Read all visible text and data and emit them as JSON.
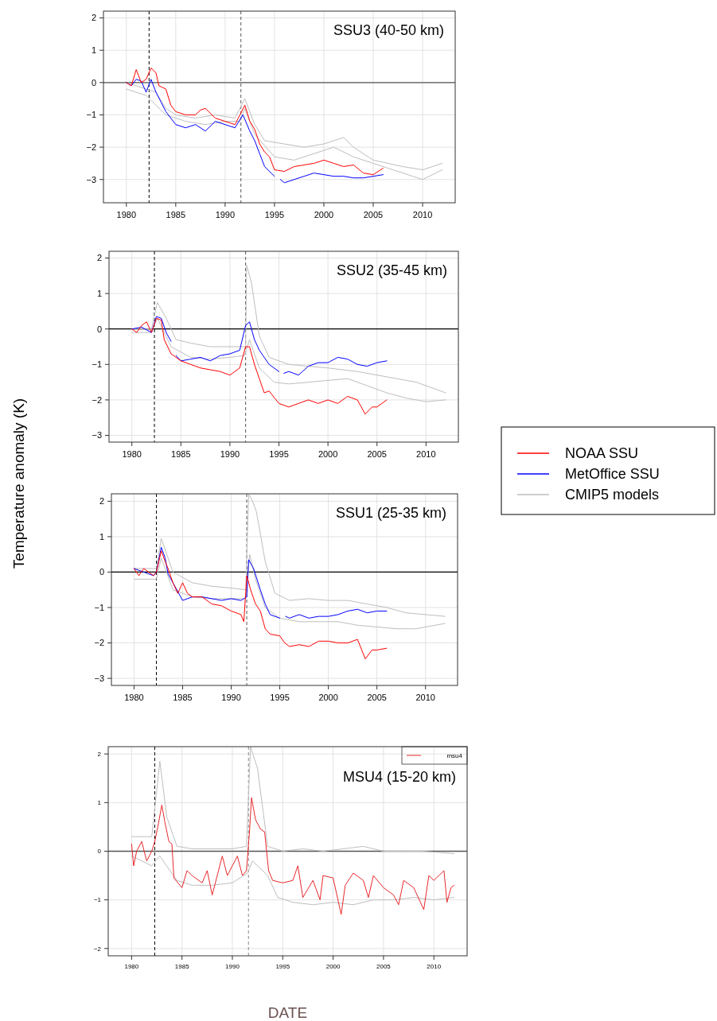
{
  "chart_data": [
    {
      "type": "line",
      "annotations": [
        "SSU3 (40-50 km)"
      ],
      "xlim": [
        1977.68,
        2013.3
      ],
      "ylim": [
        -3.72,
        2.21
      ],
      "xticks": [
        1980,
        1985,
        1990,
        1995,
        2000,
        2005,
        2010
      ],
      "yticks": [
        -3,
        -2,
        -1,
        0,
        1,
        2
      ],
      "grid": true,
      "ref_lines": [
        {
          "axis": "x",
          "value": 1982.3,
          "color": "#000000",
          "line_style": "dashed"
        },
        {
          "axis": "x",
          "value": 1991.6,
          "color": "#555555",
          "line_style": "dashed"
        },
        {
          "axis": "y",
          "value": 0,
          "color": "#555555",
          "line_style": "solid"
        }
      ],
      "series": [
        {
          "color": "#ff0000",
          "x": [
            1980,
            1980.5,
            1981,
            1981.5,
            1982,
            1982.5,
            1983,
            1983.3,
            1984,
            1984.5,
            1985,
            1986,
            1987,
            1987.5,
            1988,
            1989,
            1990,
            1991,
            1991.5,
            1992,
            1992.5,
            1993,
            1993.5,
            1994,
            1994.5,
            1995,
            1996,
            1997,
            1998,
            1999,
            2000,
            2001,
            2002,
            2003,
            2004,
            2005,
            2006
          ],
          "values": [
            0,
            -0.1,
            0.4,
            0,
            0.1,
            0.45,
            0.3,
            -0.1,
            -0.2,
            -0.7,
            -0.9,
            -1.0,
            -1.0,
            -0.85,
            -0.8,
            -1.1,
            -1.2,
            -1.3,
            -1.0,
            -0.7,
            -1.2,
            -1.45,
            -1.9,
            -2.15,
            -2.3,
            -2.7,
            -2.75,
            -2.6,
            -2.55,
            -2.5,
            -2.4,
            -2.5,
            -2.6,
            -2.55,
            -2.8,
            -2.85,
            -2.65
          ]
        },
        {
          "color": "#0000ff",
          "x": [
            1980,
            1980.5,
            1981,
            1981.5,
            1982,
            1982.5,
            1983,
            1983.5,
            1984,
            1985,
            1986,
            1987,
            1988,
            1989,
            1990,
            1991,
            1991.8,
            1992.5,
            1993,
            1993.5,
            1994,
            1995,
            1995.3,
            1995.6,
            1996,
            1997,
            1998,
            1999,
            2000,
            2001,
            2002,
            2003,
            2004,
            2005,
            2006
          ],
          "values": [
            0,
            -0.1,
            0.1,
            0.05,
            -0.3,
            0.1,
            -0.3,
            -0.6,
            -0.9,
            -1.3,
            -1.4,
            -1.3,
            -1.5,
            -1.2,
            -1.3,
            -1.4,
            -1.0,
            -1.5,
            -1.8,
            -2.2,
            -2.6,
            -2.9,
            null,
            -3.0,
            -3.1,
            -3.0,
            -2.9,
            -2.8,
            -2.85,
            -2.9,
            -2.9,
            -2.95,
            -2.95,
            -2.9,
            -2.85
          ]
        },
        {
          "color": "#bebebe",
          "x": [
            1980,
            1981,
            1982,
            1983,
            1984,
            1985,
            1987,
            1989,
            1991,
            1992,
            1993,
            1994,
            1996,
            1998,
            2000,
            2002,
            2003,
            2005,
            2008,
            2010,
            2012
          ],
          "values": [
            0,
            -0.1,
            -0.2,
            -0.3,
            -0.8,
            -1.0,
            -1.1,
            -1.0,
            -1.1,
            -0.5,
            -1.3,
            -1.8,
            -1.9,
            -2.0,
            -1.9,
            -1.7,
            -2.0,
            -2.4,
            -2.6,
            -2.7,
            -2.5
          ]
        },
        {
          "color": "#bebebe",
          "x": [
            1980,
            1982,
            1984,
            1986,
            1988,
            1990,
            1991.5,
            1992,
            1993,
            1995,
            1997,
            1999,
            2001,
            2003,
            2005,
            2007,
            2009,
            2010,
            2012
          ],
          "values": [
            -0.2,
            -0.4,
            -1.0,
            -1.2,
            -1.3,
            -1.2,
            -1.2,
            -0.8,
            -1.6,
            -2.3,
            -2.4,
            -2.2,
            -2.0,
            -2.3,
            -2.5,
            -2.7,
            -2.9,
            -3.0,
            -2.7
          ]
        }
      ]
    },
    {
      "type": "line",
      "annotations": [
        "SSU2 (35-45 km)"
      ],
      "ylabel": "Temperature anomaly (K)",
      "legend": "right",
      "xlim": [
        1977.67,
        2013.3
      ],
      "ylim": [
        -3.19,
        2.19
      ],
      "xticks": [
        1980,
        1985,
        1990,
        1995,
        2000,
        2005,
        2010
      ],
      "yticks": [
        -3,
        -2,
        -1,
        0,
        1,
        2
      ],
      "grid": true,
      "ref_lines": [
        {
          "axis": "x",
          "value": 1982.3,
          "color": "#000000",
          "line_style": "dashed"
        },
        {
          "axis": "x",
          "value": 1991.6,
          "color": "#555555",
          "line_style": "dashed"
        },
        {
          "axis": "y",
          "value": 0,
          "color": "#000000",
          "line_style": "solid"
        }
      ],
      "series": [
        {
          "name": "NOAA SSU",
          "color": "#ff0000",
          "x": [
            1980,
            1980.5,
            1981,
            1981.5,
            1982,
            1982.5,
            1983,
            1983.3,
            1984,
            1985,
            1986,
            1987,
            1988,
            1989,
            1990,
            1991,
            1991.6,
            1992,
            1992.5,
            1993,
            1993.5,
            1994,
            1995,
            1996,
            1997,
            1998,
            1999,
            2000,
            2001,
            2002,
            2003,
            2003.8,
            2004.5,
            2005,
            2006
          ],
          "values": [
            0,
            -0.1,
            0.1,
            0.2,
            -0.1,
            0.3,
            0.25,
            -0.3,
            -0.7,
            -0.9,
            -1.0,
            -1.1,
            -1.15,
            -1.2,
            -1.3,
            -1.1,
            -0.5,
            -0.5,
            -1.0,
            -1.4,
            -1.8,
            -1.75,
            -2.1,
            -2.2,
            -2.1,
            -2.0,
            -2.1,
            -2.0,
            -2.1,
            -1.9,
            -2.0,
            -2.4,
            -2.2,
            -2.2,
            -2.0
          ]
        },
        {
          "name": "MetOffice SSU",
          "color": "#0000ff",
          "x": [
            1980,
            1981,
            1982,
            1982.5,
            1983,
            1983.5,
            1984,
            1984.1,
            1984.5,
            1985,
            1986,
            1987,
            1988,
            1989,
            1990,
            1991,
            1991.6,
            1992,
            1992.5,
            1993,
            1994,
            1995,
            1995.2,
            1995.5,
            1996,
            1997,
            1998,
            1999,
            2000,
            2001,
            2002,
            2003,
            2004,
            2005,
            2006
          ],
          "values": [
            0,
            0.05,
            -0.1,
            0.35,
            0.3,
            -0.1,
            -0.35,
            null,
            -0.75,
            -0.9,
            -0.85,
            -0.8,
            -0.9,
            -0.75,
            -0.7,
            -0.6,
            0.1,
            0.2,
            -0.3,
            -0.6,
            -1.0,
            -1.2,
            null,
            -1.25,
            -1.2,
            -1.3,
            -1.05,
            -0.95,
            -0.95,
            -0.8,
            -0.85,
            -1.0,
            -1.05,
            -0.95,
            -0.9
          ]
        },
        {
          "name": "CMIP5 models",
          "color": "#bebebe",
          "x": [
            1980,
            1982,
            1982.6,
            1983.5,
            1984.5,
            1986,
            1988,
            1990,
            1991.6,
            1991.7,
            1992.2,
            1993,
            1994,
            1996,
            1998,
            2000,
            2003,
            2006,
            2009,
            2012
          ],
          "values": [
            0,
            0,
            0.75,
            0.3,
            -0.3,
            -0.4,
            -0.5,
            -0.5,
            -0.5,
            1.8,
            1.3,
            -0.2,
            -0.8,
            -1.0,
            -1.05,
            -1.1,
            -1.2,
            -1.35,
            -1.5,
            -1.8
          ]
        },
        {
          "color": "#bebebe",
          "x": [
            1980,
            1982,
            1982.6,
            1984,
            1986,
            1988,
            1990,
            1991.5,
            1992,
            1993,
            1994.5,
            1996,
            1998,
            2000,
            2002,
            2004,
            2006,
            2008,
            2010,
            2012
          ],
          "values": [
            -0.1,
            -0.1,
            0.3,
            -0.5,
            -0.8,
            -0.85,
            -0.8,
            -0.75,
            -0.3,
            -1.1,
            -1.5,
            -1.55,
            -1.5,
            -1.45,
            -1.4,
            -1.6,
            -1.8,
            -1.95,
            -2.05,
            -2.0
          ]
        }
      ]
    },
    {
      "type": "line",
      "annotations": [
        "SSU1 (25-35 km)"
      ],
      "xlim": [
        1977.67,
        2013.3
      ],
      "ylim": [
        -3.2,
        2.21
      ],
      "xticks": [
        1980,
        1985,
        1990,
        1995,
        2000,
        2005,
        2010
      ],
      "yticks": [
        -3,
        -2,
        -1,
        0,
        1,
        2
      ],
      "grid": true,
      "ref_lines": [
        {
          "axis": "x",
          "value": 1982.3,
          "color": "#000000",
          "line_style": "dashed"
        },
        {
          "axis": "x",
          "value": 1991.6,
          "color": "#555555",
          "line_style": "dashed"
        },
        {
          "axis": "y",
          "value": 0,
          "color": "#000000",
          "line_style": "solid"
        }
      ],
      "series": [
        {
          "color": "#ff0000",
          "x": [
            1980,
            1980.5,
            1981,
            1981.5,
            1982,
            1982.3,
            1982.8,
            1983.2,
            1983.5,
            1984,
            1984.5,
            1985,
            1985.5,
            1986,
            1987,
            1988,
            1989,
            1990,
            1991,
            1991.3,
            1991.6,
            1992,
            1992.5,
            1993,
            1993.5,
            1994,
            1995,
            1995.5,
            1996,
            1997,
            1998,
            1999,
            2000,
            2001,
            2002,
            2003,
            2003.8,
            2004.5,
            2005,
            2006
          ],
          "values": [
            0.1,
            -0.1,
            0.1,
            0,
            -0.1,
            0,
            0.6,
            0.3,
            0.1,
            -0.3,
            -0.6,
            -0.3,
            -0.6,
            -0.7,
            -0.7,
            -0.9,
            -0.95,
            -1.1,
            -1.2,
            -1.4,
            -0.1,
            -0.5,
            -0.9,
            -1.1,
            -1.6,
            -1.75,
            -1.8,
            -2.0,
            -2.1,
            -2.05,
            -2.1,
            -1.95,
            -1.95,
            -2.0,
            -2.0,
            -1.9,
            -2.45,
            -2.2,
            -2.2,
            -2.15
          ]
        },
        {
          "color": "#0000ff",
          "x": [
            1980,
            1981,
            1982,
            1982.3,
            1982.8,
            1983.2,
            1983.5,
            1984,
            1985,
            1986,
            1987,
            1988,
            1989,
            1990,
            1991,
            1991.6,
            1991.8,
            1992.3,
            1993,
            1993.5,
            1994,
            1995,
            1995.3,
            1995.6,
            1996,
            1997,
            1998,
            1999,
            2000,
            2001,
            2002,
            2003,
            2004,
            2005,
            2006
          ],
          "values": [
            0.1,
            0,
            -0.1,
            0,
            0.7,
            0.4,
            -0.05,
            -0.3,
            -0.8,
            -0.7,
            -0.7,
            -0.75,
            -0.8,
            -0.75,
            -0.8,
            -0.7,
            0.35,
            0.1,
            -0.5,
            -0.9,
            -1.2,
            -1.3,
            null,
            -1.25,
            -1.3,
            -1.2,
            -1.3,
            -1.25,
            -1.25,
            -1.2,
            -1.1,
            -1.05,
            -1.15,
            -1.1,
            -1.1
          ]
        },
        {
          "color": "#bebebe",
          "x": [
            1980,
            1982.3,
            1982.8,
            1984,
            1986,
            1988,
            1990,
            1991.5,
            1991.8,
            1992.2,
            1992.6,
            1993.5,
            1994.5,
            1996,
            1998,
            2000,
            2002,
            2004,
            2006,
            2008,
            2010,
            2012
          ],
          "values": [
            0.1,
            0.1,
            0.95,
            0,
            -0.3,
            -0.4,
            -0.45,
            -0.5,
            2.2,
            2.0,
            1.7,
            0.3,
            -0.6,
            -0.8,
            -0.75,
            -0.8,
            -0.8,
            -0.9,
            -1.0,
            -1.15,
            -1.2,
            -1.25
          ]
        },
        {
          "color": "#bebebe",
          "x": [
            1980,
            1982.3,
            1982.8,
            1984,
            1986,
            1988,
            1990,
            1991.5,
            1991.9,
            1992.5,
            1993.5,
            1995,
            1997,
            1999,
            2001,
            2003,
            2005,
            2007,
            2009,
            2012
          ],
          "values": [
            -0.2,
            -0.2,
            0.4,
            -0.5,
            -0.7,
            -0.75,
            -0.75,
            -0.75,
            0.5,
            -0.2,
            -1.0,
            -1.3,
            -1.4,
            -1.4,
            -1.4,
            -1.5,
            -1.55,
            -1.6,
            -1.6,
            -1.45
          ]
        }
      ]
    },
    {
      "type": "line",
      "annotations": [
        "MSU4 (15-20 km)"
      ],
      "xlabel": "DATE",
      "legend": "top right",
      "xlim": [
        1977.68,
        2013.3
      ],
      "ylim": [
        -2.15,
        2.15
      ],
      "xticks": [
        1980,
        1985,
        1990,
        1995,
        2000,
        2005,
        2010
      ],
      "yticks": [
        -2,
        -1,
        0,
        1,
        2
      ],
      "grid": true,
      "ref_lines": [
        {
          "axis": "x",
          "value": 1982.3,
          "color": "#000000",
          "line_style": "dashed"
        },
        {
          "axis": "x",
          "value": 1991.6,
          "color": "#888888",
          "line_style": "dashed"
        },
        {
          "axis": "y",
          "value": 0,
          "color": "#555555",
          "line_style": "solid"
        }
      ],
      "series": [
        {
          "name": "msu4",
          "color": "#e8282b",
          "x": [
            1980,
            1980.2,
            1980.5,
            1981,
            1981.5,
            1982,
            1982.3,
            1982.6,
            1983,
            1983.3,
            1983.7,
            1984,
            1984.2,
            1985,
            1985.5,
            1986,
            1987,
            1987.5,
            1988,
            1989,
            1989.5,
            1990,
            1990.5,
            1991,
            1991.4,
            1991.7,
            1991.9,
            1992.3,
            1992.8,
            1993.2,
            1993.6,
            1994,
            1995,
            1996,
            1996.5,
            1997,
            1998,
            1998.7,
            1999,
            2000,
            2000.8,
            2001.2,
            2002,
            2003,
            2003.5,
            2004,
            2005,
            2006,
            2006.5,
            2007,
            2008,
            2009,
            2009.5,
            2010,
            2011,
            2011.3,
            2011.7,
            2012
          ],
          "values": [
            0.15,
            -0.3,
            0,
            0.2,
            -0.2,
            0,
            0.2,
            0.5,
            0.95,
            0.6,
            0.2,
            0.15,
            -0.55,
            -0.75,
            -0.4,
            -0.5,
            -0.65,
            -0.4,
            -0.9,
            -0.1,
            -0.5,
            -0.3,
            -0.1,
            -0.5,
            -0.4,
            0.4,
            1.1,
            0.65,
            0.45,
            0.4,
            -0.4,
            -0.6,
            -0.65,
            -0.6,
            -0.3,
            -0.95,
            -0.6,
            -1.0,
            -0.5,
            -0.55,
            -1.3,
            -0.7,
            -0.45,
            -0.6,
            -0.95,
            -0.5,
            -0.75,
            -0.9,
            -1.1,
            -0.6,
            -0.75,
            -1.2,
            -0.5,
            -0.6,
            -0.4,
            -1.05,
            -0.75,
            -0.7
          ]
        },
        {
          "color": "#bebebe",
          "x": [
            1980,
            1982,
            1982.8,
            1983.5,
            1984.5,
            1986,
            1988,
            1990,
            1991.4,
            1991.8,
            1992.5,
            1993.5,
            1995,
            1997,
            1999,
            2001,
            2003,
            2005,
            2007,
            2009,
            2012
          ],
          "values": [
            0.3,
            0.3,
            1.85,
            0.7,
            0.1,
            0.05,
            0.05,
            0.05,
            0.1,
            2.15,
            1.7,
            0.1,
            0,
            0.05,
            0,
            0.05,
            0.1,
            0,
            0,
            0,
            -0.05
          ]
        },
        {
          "color": "#bebebe",
          "x": [
            1980,
            1982,
            1982.8,
            1984.5,
            1986,
            1988,
            1990,
            1991.5,
            1992,
            1993.5,
            1994.5,
            1996,
            1998,
            2000,
            2002,
            2004,
            2006,
            2008,
            2010,
            2012
          ],
          "values": [
            -0.1,
            -0.3,
            -0.1,
            -0.6,
            -0.7,
            -0.7,
            -0.65,
            -0.45,
            -0.2,
            -0.5,
            -0.95,
            -1.05,
            -1.1,
            -1.05,
            -1.1,
            -1.0,
            -1.0,
            -0.95,
            -1.0,
            -0.95
          ]
        }
      ]
    }
  ]
}
